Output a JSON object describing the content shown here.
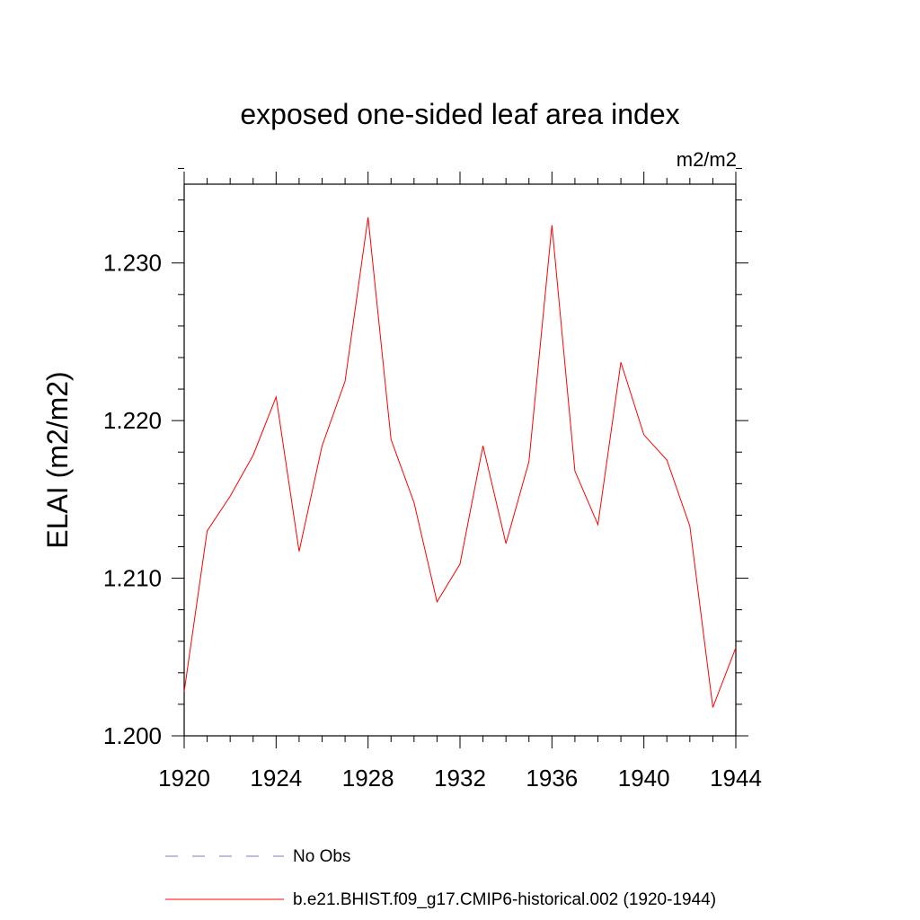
{
  "chart_data": {
    "type": "line",
    "title": "exposed one-sided leaf area index",
    "units": "m2/m2",
    "ylabel": "ELAI  (m2/m2)",
    "xlabel": "",
    "xlim": [
      1920,
      1944
    ],
    "ylim": [
      1.2,
      1.235
    ],
    "x_ticks": [
      1920,
      1924,
      1928,
      1932,
      1936,
      1940,
      1944
    ],
    "x_minor_step": 1,
    "y_ticks": [
      1.2,
      1.21,
      1.22,
      1.23
    ],
    "y_tick_labels": [
      "1.200",
      "1.210",
      "1.220",
      "1.230"
    ],
    "y_minor_step": 0.002,
    "grid": false,
    "series": [
      {
        "name": "b.e21.BHIST.f09_g17.CMIP6-historical.002 (1920-1944)",
        "color": "#ff0000",
        "x": [
          1920,
          1921,
          1922,
          1923,
          1924,
          1925,
          1926,
          1927,
          1928,
          1929,
          1930,
          1931,
          1932,
          1933,
          1934,
          1935,
          1936,
          1937,
          1938,
          1939,
          1940,
          1941,
          1942,
          1943,
          1944
        ],
        "y": [
          1.2028,
          1.213,
          1.2152,
          1.2178,
          1.2215,
          1.2117,
          1.2184,
          1.2225,
          1.2329,
          1.2188,
          1.2148,
          1.2085,
          1.2109,
          1.2184,
          1.2122,
          1.2174,
          1.2324,
          1.2168,
          1.2134,
          1.2237,
          1.2191,
          1.2175,
          1.2133,
          1.2018,
          1.2056
        ]
      }
    ],
    "legend": [
      {
        "label": "No Obs",
        "style": "dashed",
        "color": "#7b7bc9"
      },
      {
        "label": "b.e21.BHIST.f09_g17.CMIP6-historical.002 (1920-1944)",
        "style": "solid",
        "color": "#ff0000"
      }
    ],
    "legend_placement": "bottom"
  }
}
